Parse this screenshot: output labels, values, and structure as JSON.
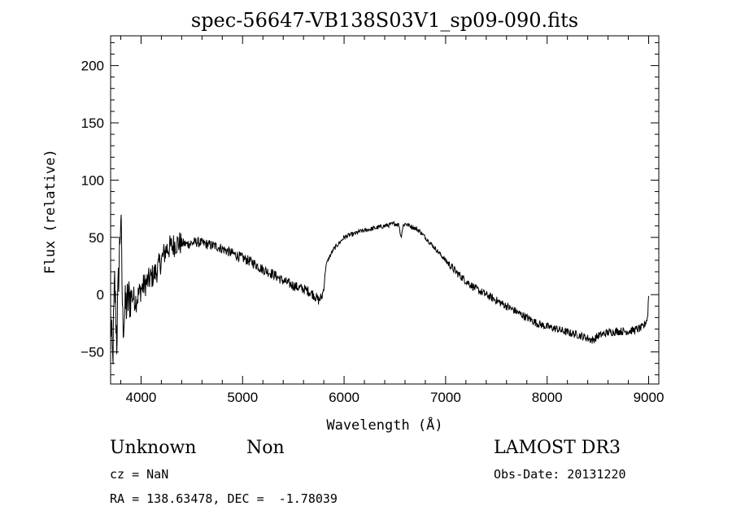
{
  "chart_data": {
    "type": "line",
    "title": "spec-56647-VB138S03V1_sp09-090.fits",
    "xlabel": "Wavelength (Å)",
    "ylabel": "Flux (relative)",
    "xlim": [
      3700,
      9100
    ],
    "ylim": [
      -78,
      226
    ],
    "x_ticks": [
      4000,
      5000,
      6000,
      7000,
      8000,
      9000
    ],
    "y_ticks": [
      -50,
      0,
      50,
      100,
      150,
      200
    ],
    "grid": false,
    "series": [
      {
        "x": [
          3700,
          3720,
          3740,
          3760,
          3780,
          3800,
          3820,
          3850,
          3900,
          3950,
          4000,
          4050,
          4100,
          4150,
          4200,
          4250,
          4300,
          4350,
          4400,
          4450,
          4500,
          4550,
          4600,
          4650,
          4700,
          4750,
          4800,
          4850,
          4900,
          4950,
          5000,
          5050,
          5100,
          5150,
          5200,
          5250,
          5300,
          5350,
          5400,
          5450,
          5500,
          5550,
          5600,
          5650,
          5700,
          5750,
          5780,
          5800,
          5820,
          5850,
          5900,
          5950,
          6000,
          6050,
          6100,
          6150,
          6200,
          6250,
          6300,
          6350,
          6400,
          6450,
          6500,
          6540,
          6560,
          6580,
          6600,
          6650,
          6700,
          6750,
          6800,
          6850,
          6900,
          6950,
          7000,
          7100,
          7200,
          7300,
          7400,
          7500,
          7600,
          7700,
          7800,
          7900,
          8000,
          8100,
          8200,
          8300,
          8400,
          8450,
          8500,
          8600,
          8700,
          8800,
          8900,
          8950,
          8990,
          9000
        ],
        "values": [
          -20,
          -60,
          10,
          -40,
          20,
          70,
          -25,
          -10,
          0,
          -5,
          5,
          10,
          15,
          20,
          30,
          40,
          42,
          45,
          45,
          44,
          45,
          46,
          45,
          44,
          43,
          42,
          40,
          38,
          36,
          34,
          32,
          30,
          28,
          25,
          22,
          20,
          18,
          15,
          12,
          10,
          8,
          6,
          5,
          3,
          0,
          -5,
          -2,
          5,
          25,
          32,
          40,
          45,
          50,
          52,
          53,
          55,
          56,
          57,
          58,
          59,
          60,
          61,
          62,
          61,
          50,
          60,
          62,
          60,
          58,
          55,
          50,
          45,
          40,
          35,
          30,
          20,
          12,
          5,
          0,
          -5,
          -10,
          -15,
          -20,
          -25,
          -28,
          -30,
          -33,
          -35,
          -38,
          -40,
          -36,
          -33,
          -32,
          -32,
          -30,
          -28,
          -20,
          0
        ]
      }
    ]
  },
  "annotations": {
    "class_label": "Unknown",
    "subclass_label": "Non",
    "survey_label": "LAMOST DR3",
    "cz_text": "cz = NaN",
    "obs_date_text": "Obs-Date: 20131220",
    "coords_text": "RA = 138.63478, DEC =  -1.78039"
  }
}
